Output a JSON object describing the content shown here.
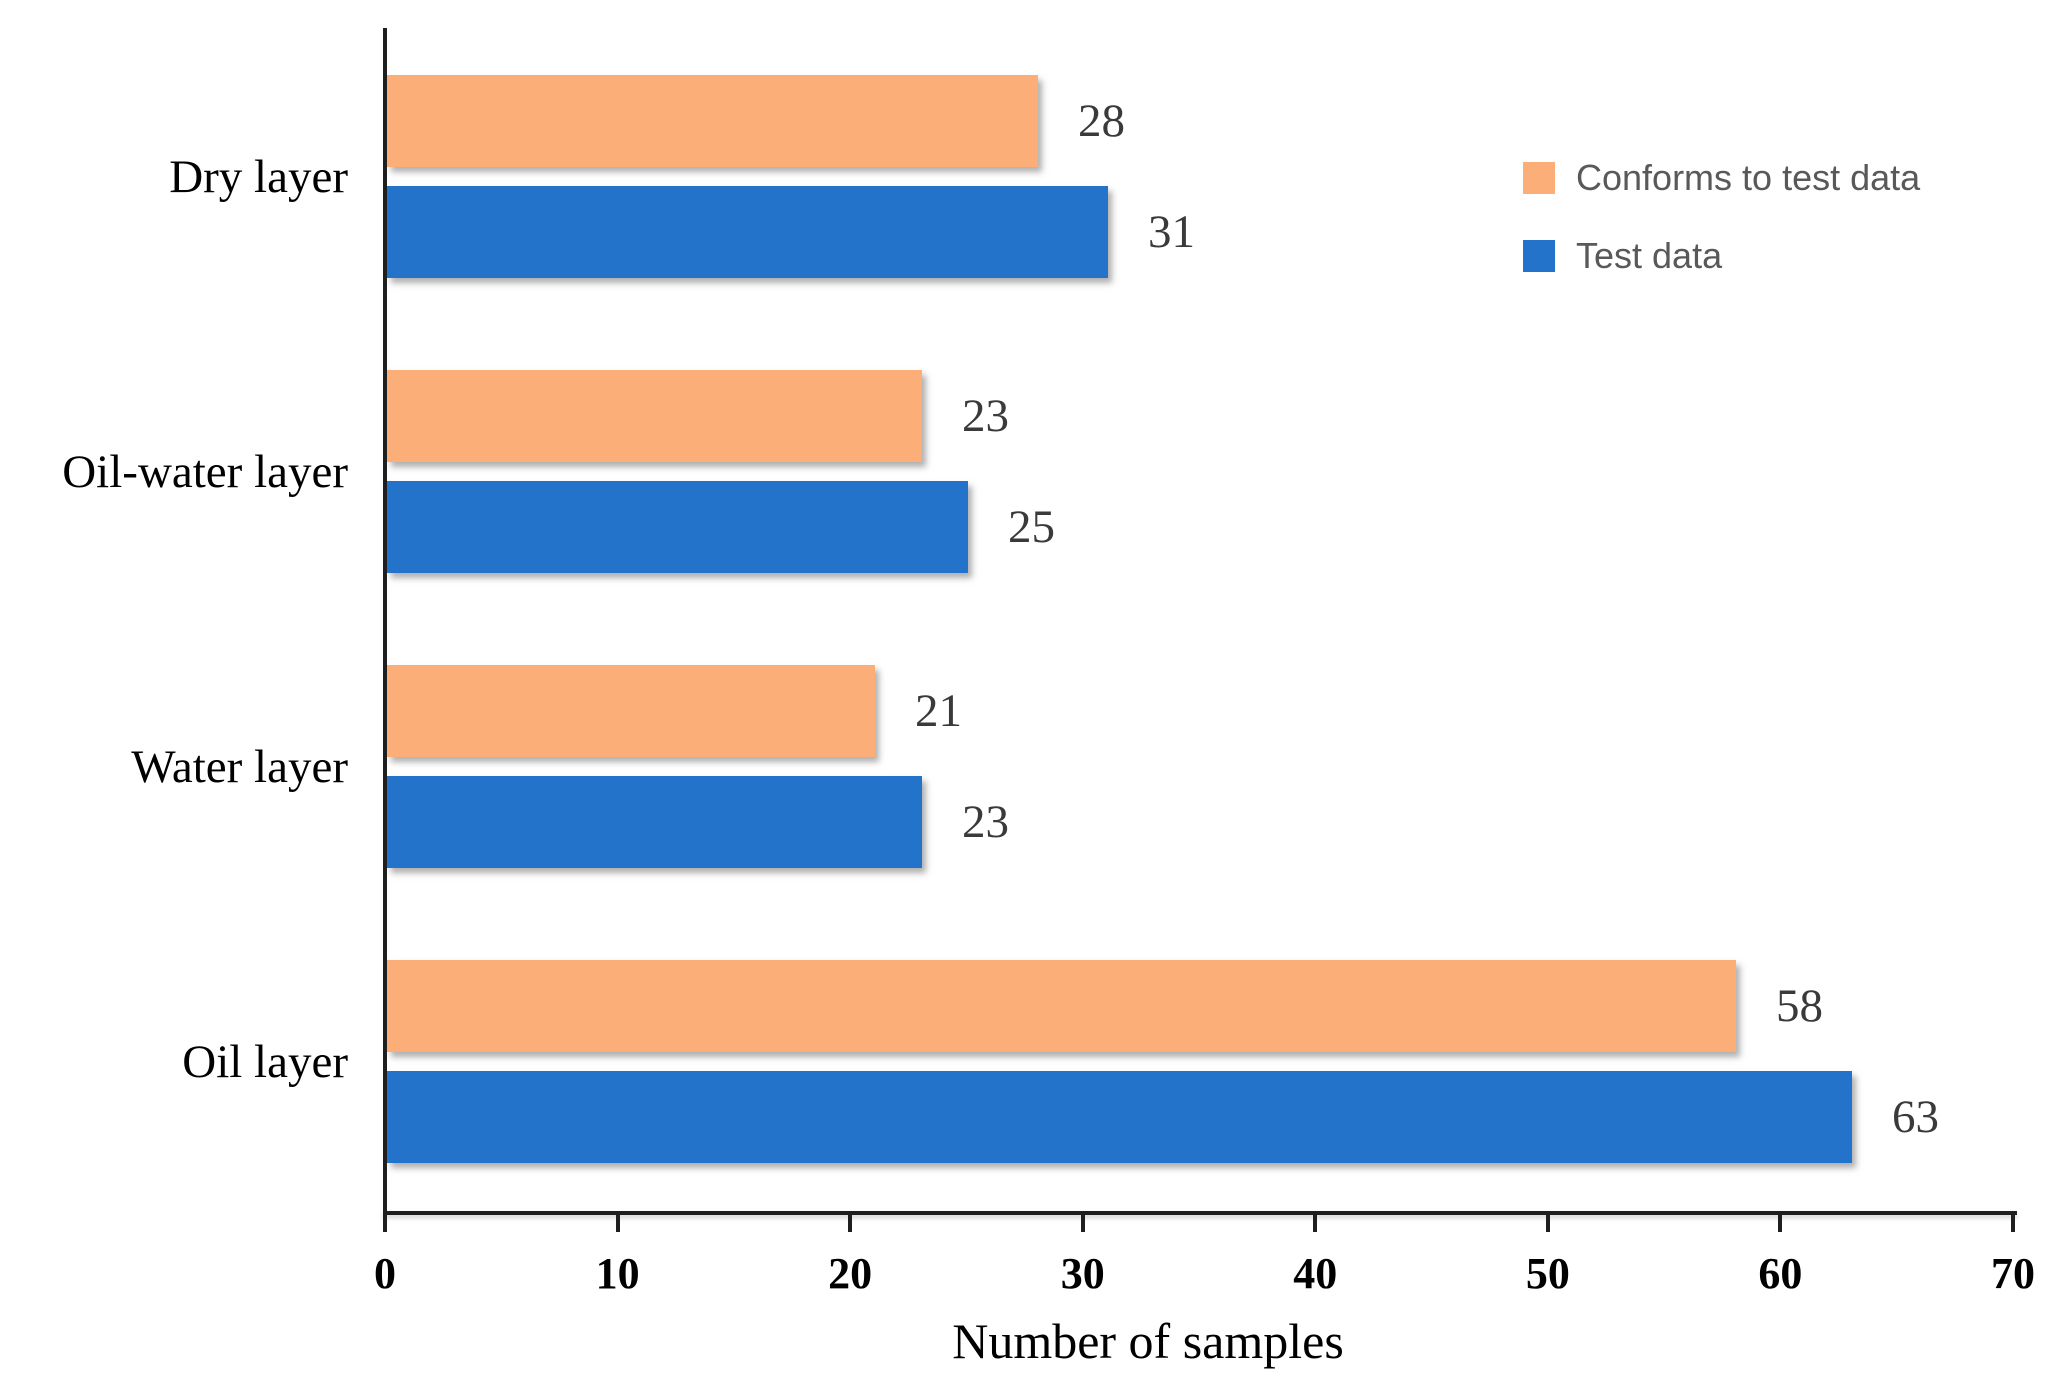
{
  "chart_data": {
    "type": "bar",
    "orientation": "horizontal",
    "title": "",
    "xlabel": "Number of samples",
    "ylabel": "",
    "categories": [
      "Dry layer",
      "Oil-water layer",
      "Water layer",
      "Oil layer"
    ],
    "series": [
      {
        "name": "Conforms to test data",
        "color": "#FBAE77",
        "values": [
          28,
          23,
          21,
          58
        ]
      },
      {
        "name": "Test data",
        "color": "#2273C9",
        "values": [
          31,
          25,
          23,
          63
        ]
      }
    ],
    "xlim": [
      0,
      70
    ],
    "xticks": [
      0,
      10,
      20,
      30,
      40,
      50,
      60,
      70
    ],
    "grid": false,
    "value_labels": true,
    "legend_position": "top-right"
  },
  "colors": {
    "axis_line": "#1F1F1F",
    "tick_label": "#000000",
    "category_label": "#000000",
    "value_label": "#3A3A3A",
    "legend_text": "#595959",
    "background": "#FFFFFF"
  }
}
